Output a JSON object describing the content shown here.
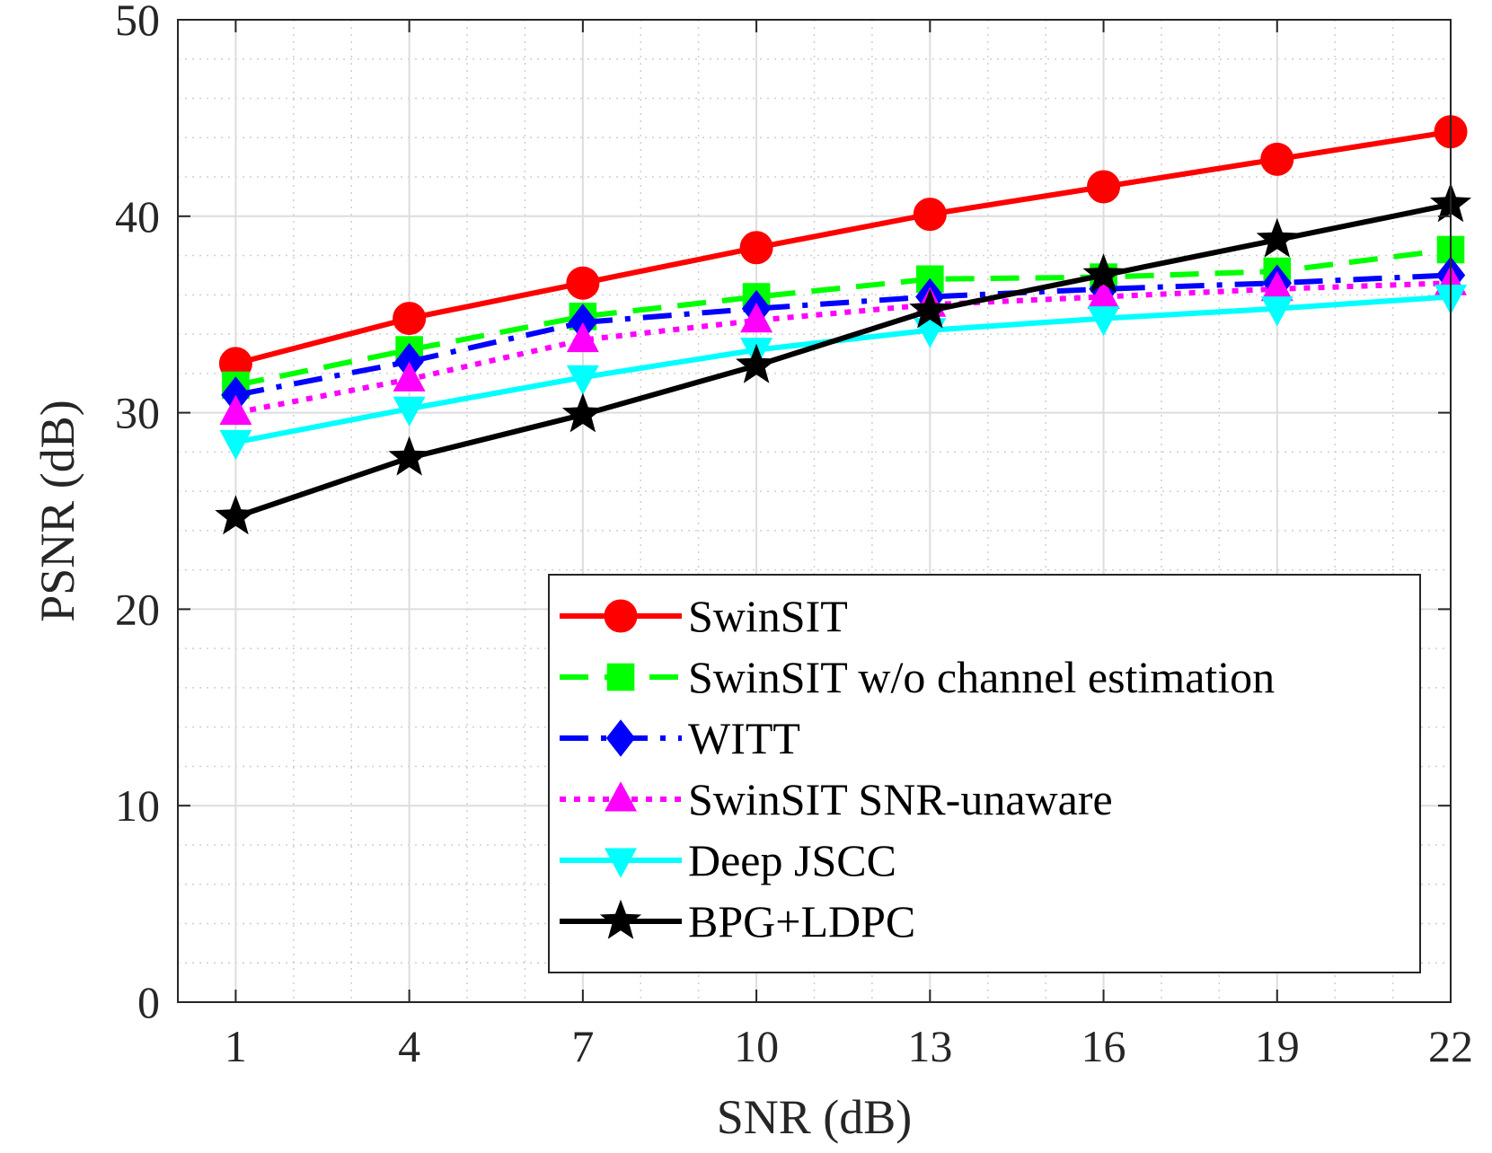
{
  "chart_data": {
    "type": "line",
    "title": "",
    "xlabel": "SNR (dB)",
    "ylabel": "PSNR (dB)",
    "x": [
      1,
      4,
      7,
      10,
      13,
      16,
      19,
      22
    ],
    "x_ticks": [
      "1",
      "4",
      "7",
      "10",
      "13",
      "16",
      "19",
      "22"
    ],
    "y_ticks": [
      "0",
      "10",
      "20",
      "30",
      "40",
      "50"
    ],
    "xlim": [
      0,
      22
    ],
    "ylim": [
      0,
      50
    ],
    "grid": true,
    "minor_grid": true,
    "legend_position": "bottom-right",
    "series": [
      {
        "name": "SwinSIT",
        "color": "#ff0000",
        "dash": "solid",
        "marker": "circle",
        "values": [
          32.5,
          34.8,
          36.6,
          38.4,
          40.1,
          41.5,
          42.9,
          44.3
        ]
      },
      {
        "name": "SwinSIT w/o channel estimation",
        "color": "#00ff00",
        "dash": "dashed",
        "marker": "square",
        "values": [
          31.4,
          33.2,
          34.9,
          35.9,
          36.8,
          36.9,
          37.2,
          38.3
        ]
      },
      {
        "name": "WITT",
        "color": "#0000ff",
        "dash": "dashdot",
        "marker": "diamond",
        "values": [
          30.9,
          32.6,
          34.6,
          35.3,
          35.9,
          36.3,
          36.6,
          37.0
        ]
      },
      {
        "name": "SwinSIT SNR-unaware",
        "color": "#ff00ff",
        "dash": "dotted",
        "marker": "triangle-up",
        "values": [
          30.0,
          31.7,
          33.7,
          34.7,
          35.5,
          35.9,
          36.3,
          36.6
        ]
      },
      {
        "name": "Deep JSCC",
        "color": "#00ffff",
        "dash": "solid",
        "marker": "triangle-down",
        "values": [
          28.5,
          30.2,
          31.8,
          33.2,
          34.2,
          34.8,
          35.3,
          35.9
        ]
      },
      {
        "name": "BPG+LDPC",
        "color": "#000000",
        "dash": "solid",
        "marker": "star",
        "values": [
          24.7,
          27.7,
          29.9,
          32.4,
          35.2,
          37.0,
          38.8,
          40.6
        ]
      }
    ]
  }
}
